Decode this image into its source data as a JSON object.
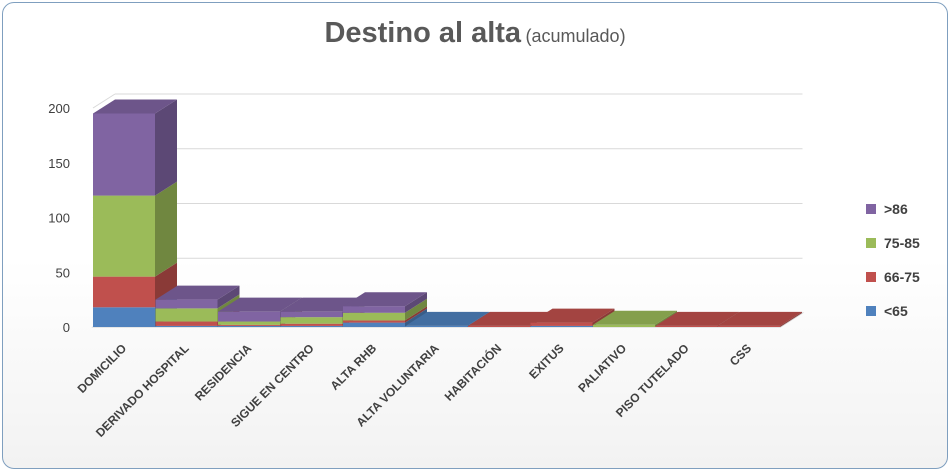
{
  "chart_data": {
    "type": "bar",
    "stacked": true,
    "three_d": true,
    "title": "Destino al alta",
    "subtitle": "(acumulado)",
    "categories": [
      "DOMICILIO",
      "DERIVADO HOSPITAL",
      "RESIDENCIA",
      "SIGUE EN CENTRO",
      "ALTA RHB",
      "ALTA VOLUNTARIA",
      "HABITACIÓN",
      "EXITUS",
      "PALIATIVO",
      "PISO TUTELADO",
      "CSS"
    ],
    "series": [
      {
        "name": "<65",
        "color": "#4f81bd",
        "values": [
          18,
          1,
          1,
          1,
          4,
          1,
          0,
          1,
          0,
          0,
          0
        ]
      },
      {
        "name": "66-75",
        "color": "#c0504d",
        "values": [
          28,
          4,
          1,
          2,
          2,
          0,
          1,
          3,
          0,
          1,
          1
        ]
      },
      {
        "name": "75-85",
        "color": "#9bbb59",
        "values": [
          74,
          12,
          3,
          6,
          7,
          0,
          0,
          0,
          2,
          0,
          0
        ]
      },
      {
        "name": ">86",
        "color": "#8064a2",
        "values": [
          75,
          8,
          9,
          5,
          6,
          0,
          0,
          0,
          0,
          0,
          0
        ]
      }
    ],
    "yticks": [
      0,
      50,
      100,
      150,
      200
    ],
    "ylim": [
      0,
      200
    ],
    "grid": true,
    "legend_position": "right"
  }
}
